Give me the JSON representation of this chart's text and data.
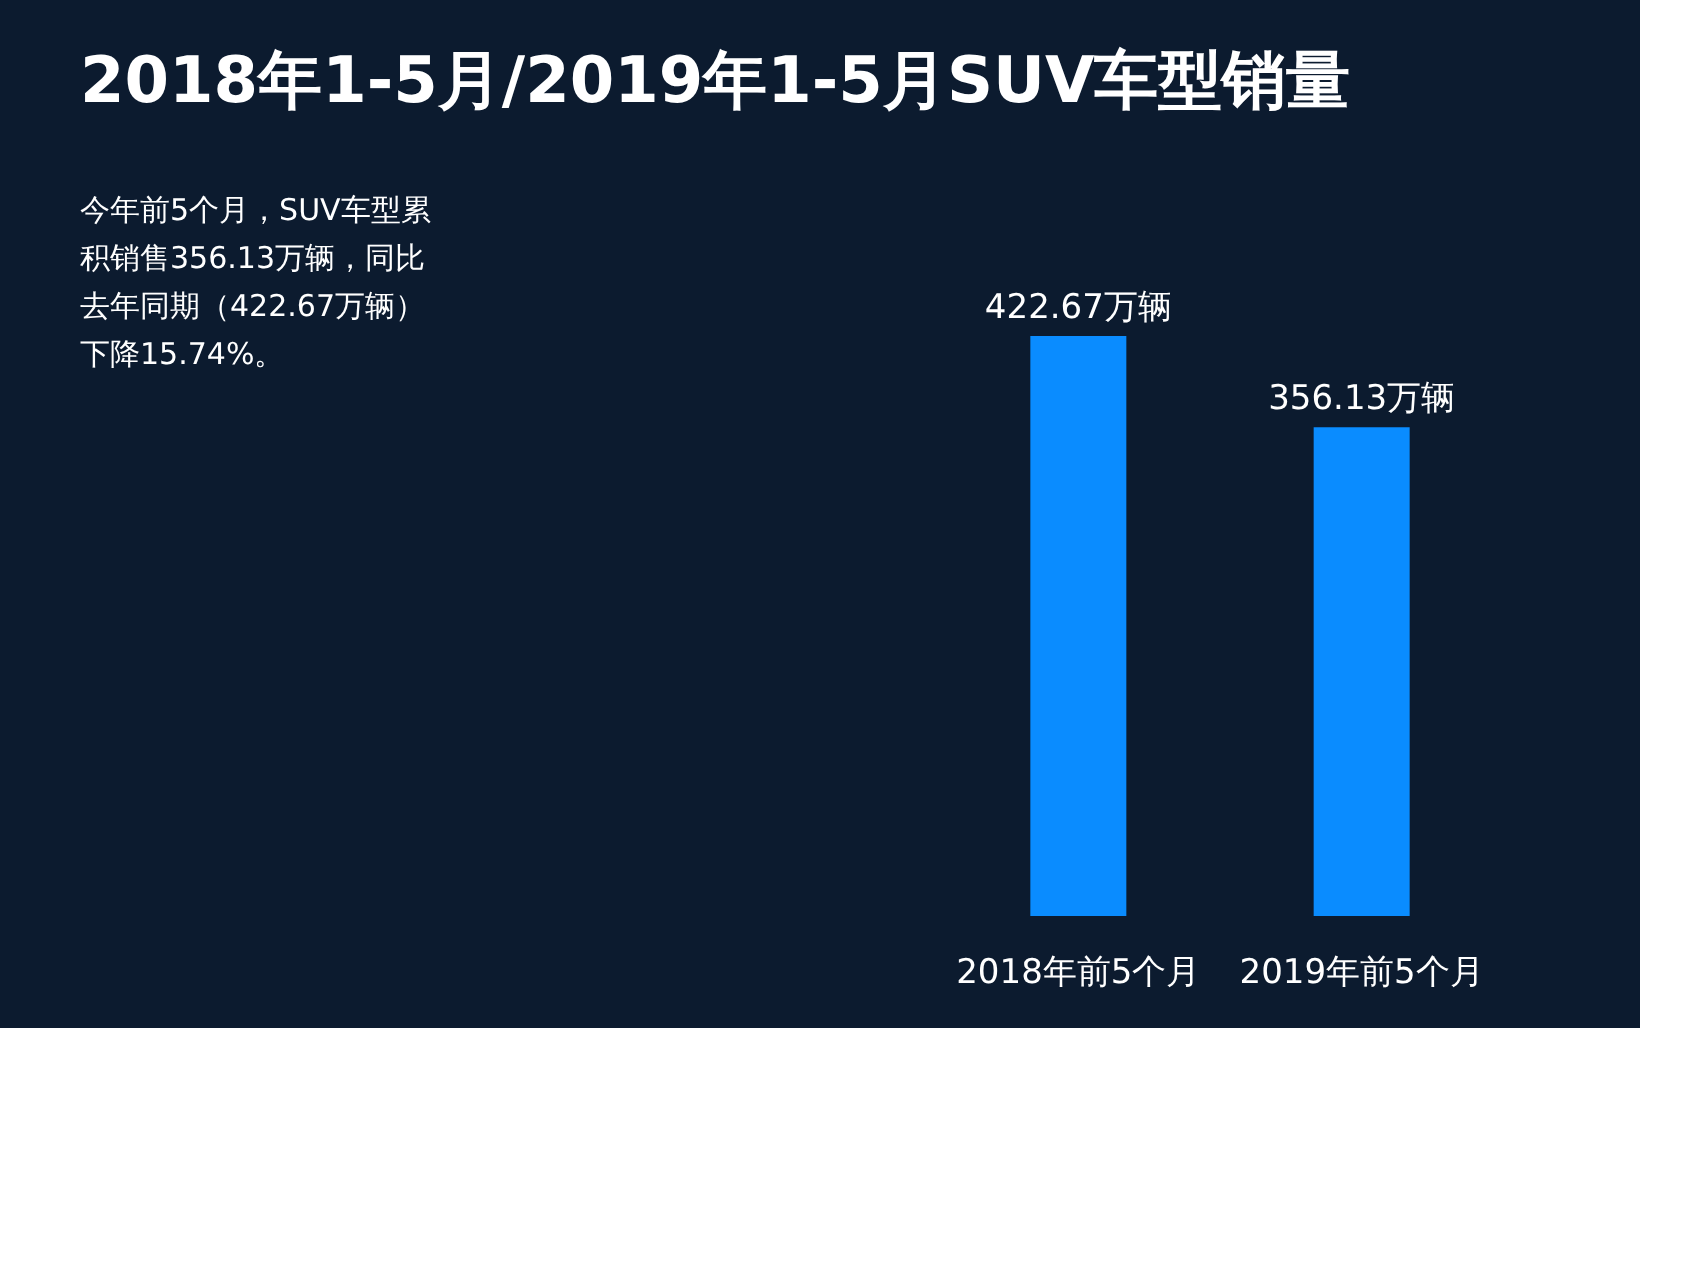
{
  "chart_data": {
    "type": "bar",
    "title": "2018年1-5月/2019年1-5月SUV车型销量",
    "categories": [
      "2018年前5个月",
      "2019年前5个月"
    ],
    "values": [
      422.67,
      356.13
    ],
    "value_labels": [
      "422.67万辆",
      "356.13万辆"
    ],
    "color": "#0a8cff",
    "annotations": [
      "今年前5个月，SUV车型累积销售356.13万辆，同比去年同期（422.67万辆）下降15.74%。"
    ],
    "grid": false
  }
}
